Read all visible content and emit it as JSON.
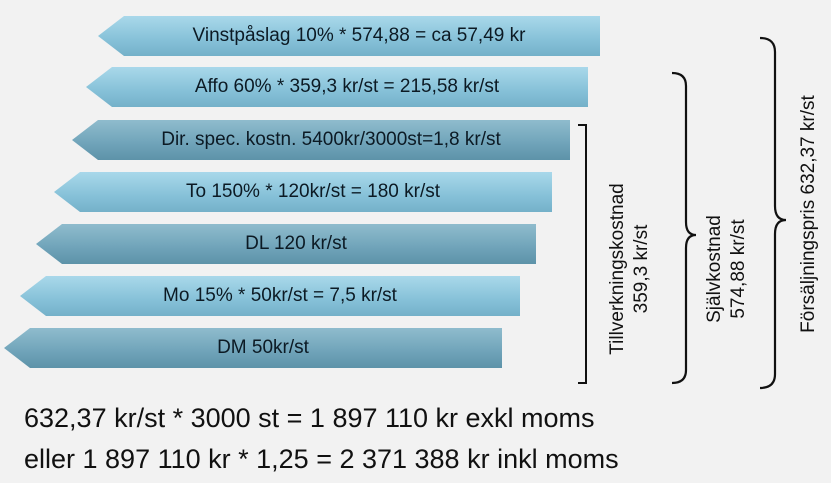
{
  "arrows": [
    {
      "label": "Vinstpåslag 10% * 574,88 = ca 57,49 kr"
    },
    {
      "label": "Affo 60% * 359,3 kr/st = 215,58 kr/st"
    },
    {
      "label": "Dir. spec. kostn. 5400kr/3000st=1,8 kr/st"
    },
    {
      "label": "To 150% * 120kr/st = 180 kr/st"
    },
    {
      "label": "DL 120 kr/st"
    },
    {
      "label": "Mo 15% * 50kr/st = 7,5 kr/st"
    },
    {
      "label": "DM 50kr/st"
    }
  ],
  "groups": {
    "tillverkning": {
      "line1": "Tillverkningskostnad",
      "line2": "359,3 kr/st"
    },
    "sjalvkostnad": {
      "line1": "Självkostnad",
      "line2": "574,88 kr/st"
    },
    "forsaljning": {
      "line1": "Försäljningspris 632,37 kr/st"
    }
  },
  "summary": {
    "line1": "632,37 kr/st * 3000 st = 1 897 110 kr exkl moms",
    "line2": "eller 1 897 110 kr * 1,25 = 2 371 388 kr inkl moms"
  },
  "colors": {
    "arrow_light": "#86c1d8",
    "arrow_dark": "#6fa3b9",
    "bracket": "#111111"
  }
}
